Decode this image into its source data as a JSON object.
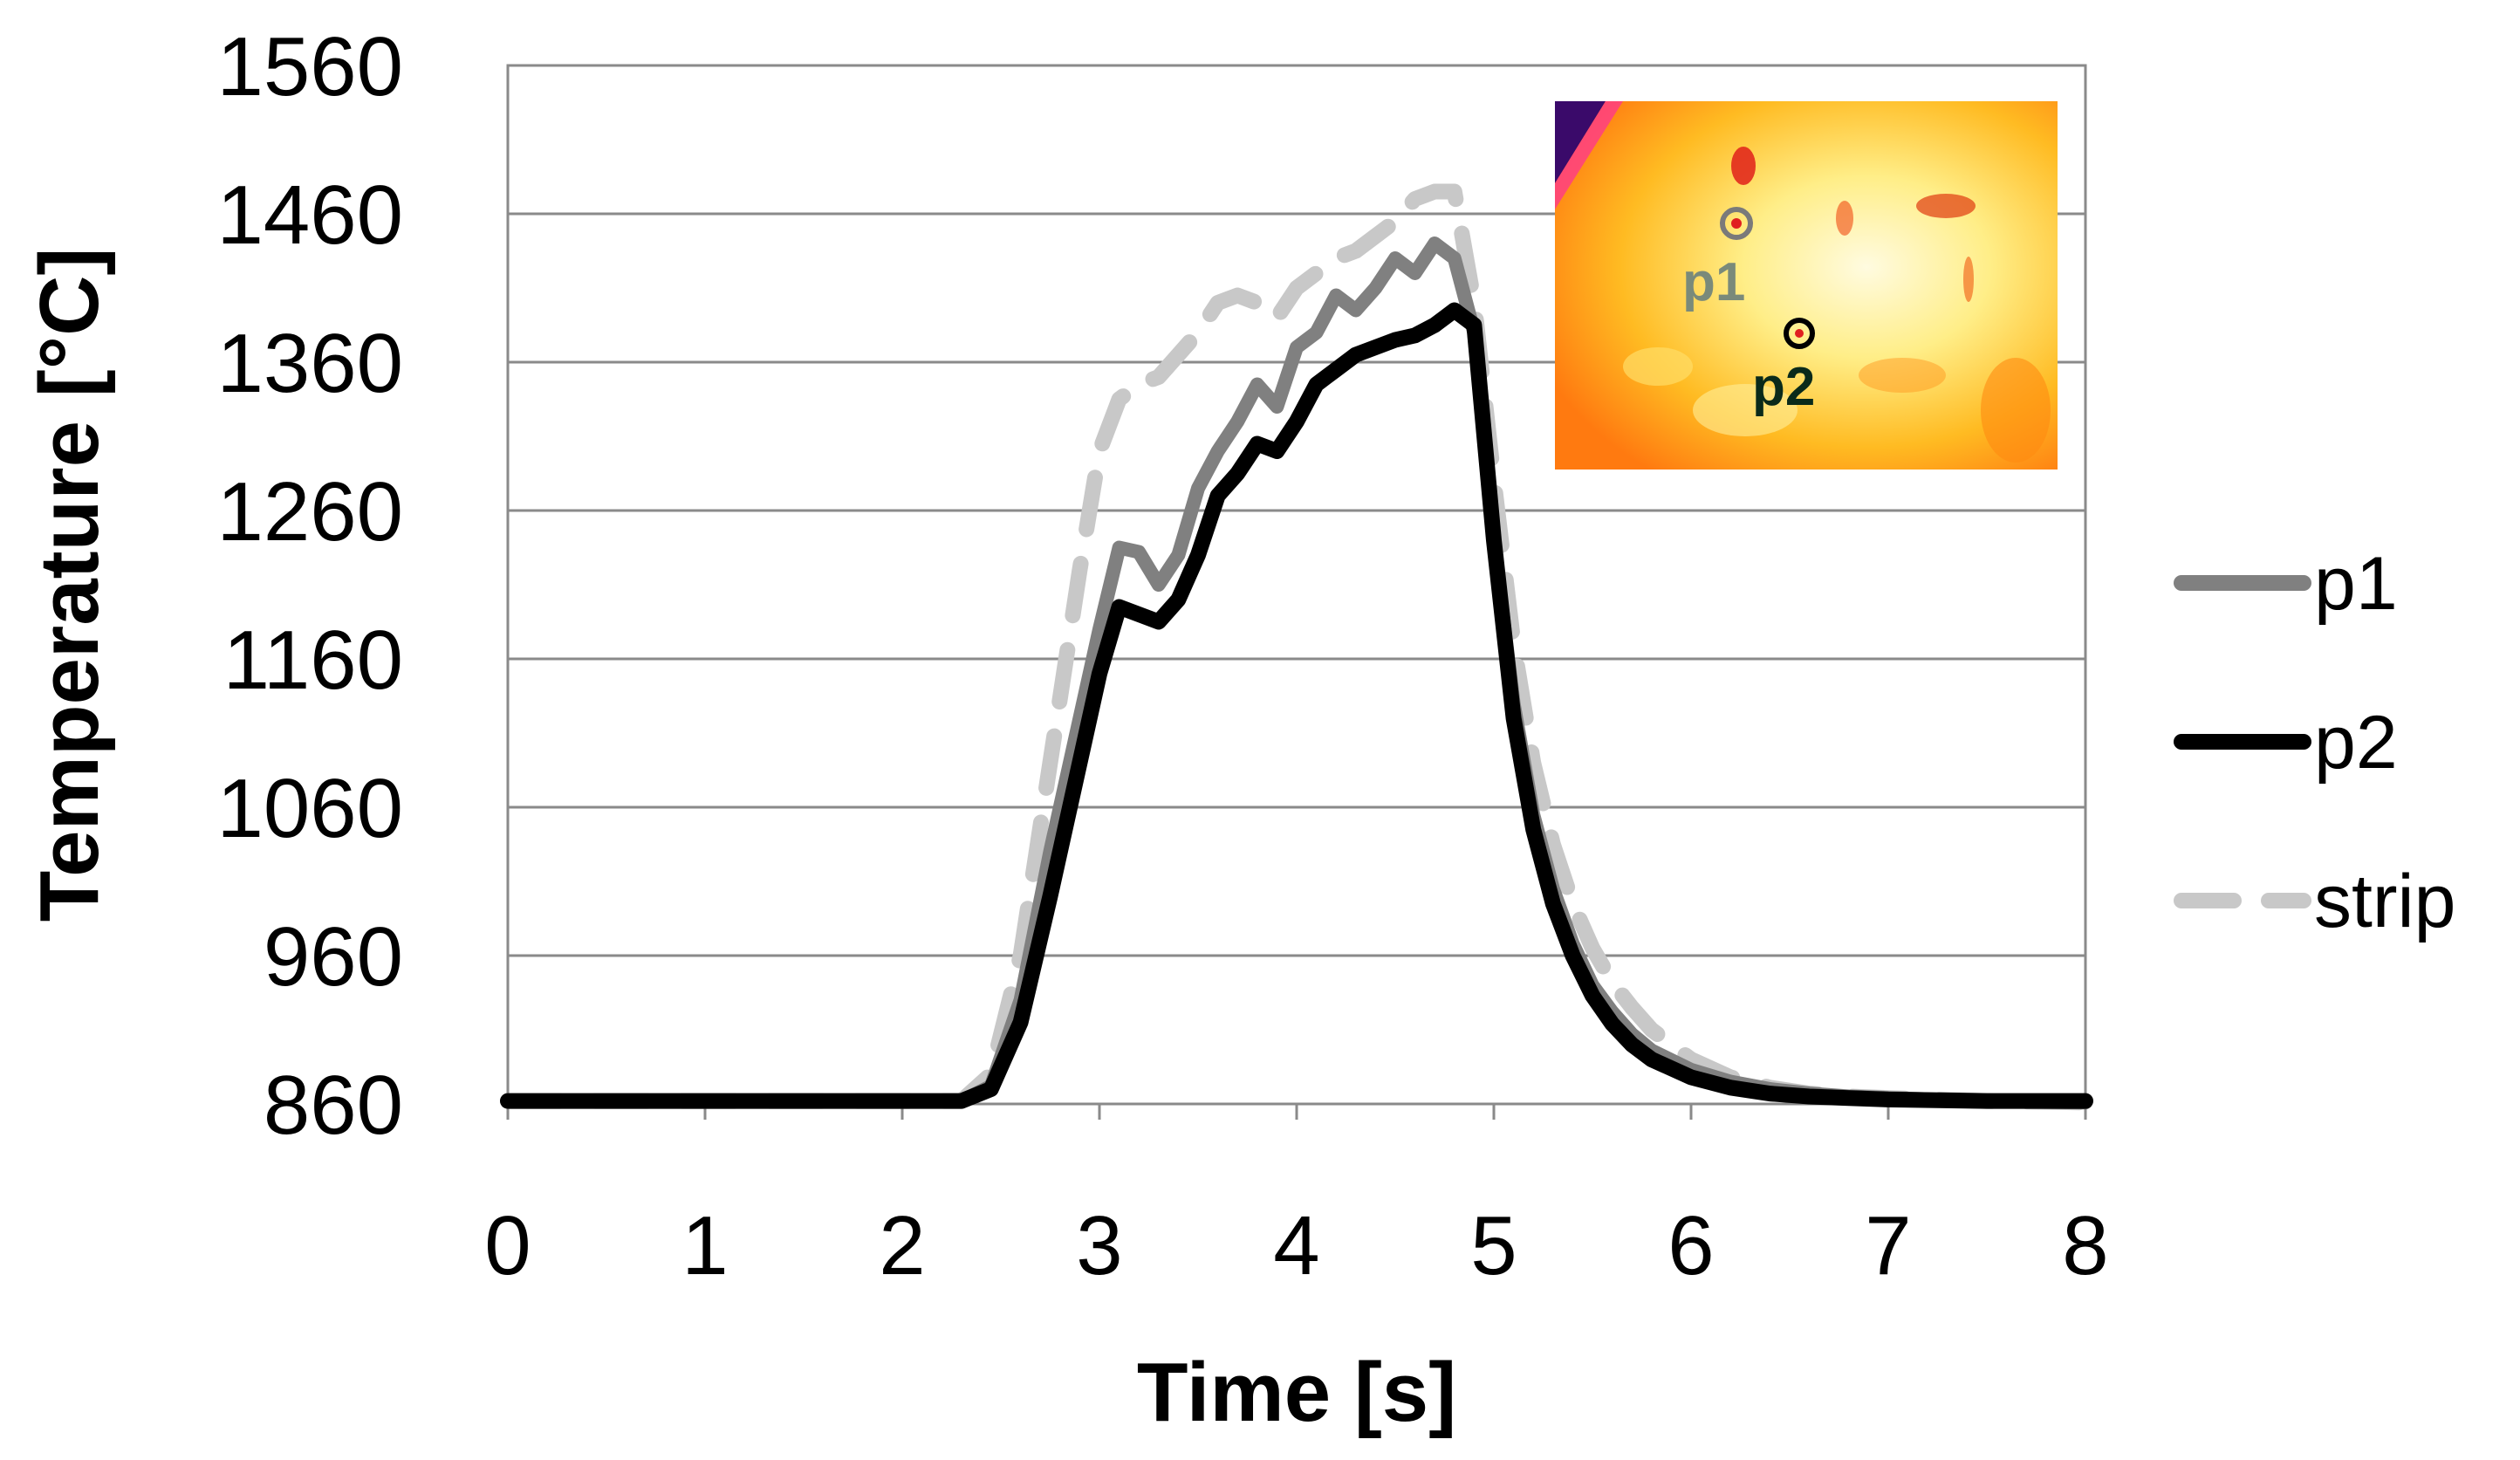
{
  "chart_data": {
    "type": "line",
    "title": "",
    "xlabel": "Time [s]",
    "ylabel": "Temperature [°C]",
    "xlim": [
      0,
      8
    ],
    "ylim": [
      860,
      1560
    ],
    "xticks": [
      "0",
      "1",
      "2",
      "3",
      "4",
      "5",
      "6",
      "7",
      "8"
    ],
    "yticks": [
      "860",
      "960",
      "1060",
      "1160",
      "1260",
      "1360",
      "1460",
      "1560"
    ],
    "grid": "horizontal",
    "legend_position": "right",
    "series": [
      {
        "name": "p1",
        "color": "#808080",
        "style": "solid",
        "x": [
          0,
          2.3,
          2.45,
          2.6,
          2.75,
          2.9,
          3.0,
          3.1,
          3.2,
          3.3,
          3.4,
          3.5,
          3.6,
          3.7,
          3.8,
          3.9,
          4.0,
          4.1,
          4.2,
          4.3,
          4.4,
          4.5,
          4.6,
          4.7,
          4.8,
          4.9,
          5.0,
          5.1,
          5.2,
          5.3,
          5.4,
          5.5,
          5.6,
          5.7,
          5.8,
          6.0,
          6.2,
          6.4,
          6.6,
          6.8,
          7.0,
          7.5,
          8.0
        ],
        "y": [
          862,
          862,
          872,
          930,
          1030,
          1120,
          1180,
          1235,
          1232,
          1210,
          1230,
          1275,
          1300,
          1320,
          1345,
          1330,
          1370,
          1380,
          1405,
          1395,
          1410,
          1430,
          1420,
          1440,
          1430,
          1380,
          1240,
          1130,
          1055,
          1005,
          968,
          940,
          922,
          907,
          896,
          883,
          875,
          870,
          867,
          865,
          864,
          862,
          861
        ]
      },
      {
        "name": "p2",
        "color": "#000000",
        "style": "solid",
        "x": [
          0,
          2.3,
          2.45,
          2.6,
          2.75,
          2.9,
          3.0,
          3.1,
          3.2,
          3.3,
          3.4,
          3.5,
          3.6,
          3.7,
          3.8,
          3.9,
          4.0,
          4.1,
          4.2,
          4.3,
          4.4,
          4.5,
          4.6,
          4.7,
          4.8,
          4.9,
          5.0,
          5.1,
          5.2,
          5.3,
          5.4,
          5.5,
          5.6,
          5.7,
          5.8,
          6.0,
          6.2,
          6.4,
          6.6,
          6.8,
          7.0,
          7.5,
          8.0
        ],
        "y": [
          862,
          862,
          870,
          915,
          1000,
          1090,
          1150,
          1195,
          1190,
          1185,
          1200,
          1230,
          1270,
          1285,
          1305,
          1300,
          1320,
          1345,
          1355,
          1365,
          1370,
          1375,
          1378,
          1385,
          1395,
          1385,
          1240,
          1120,
          1045,
          995,
          960,
          933,
          914,
          900,
          890,
          878,
          871,
          867,
          865,
          864,
          863,
          862,
          862
        ]
      },
      {
        "name": "strip",
        "color": "#c8c8c8",
        "style": "dashed",
        "x": [
          0,
          2.3,
          2.45,
          2.6,
          2.75,
          2.9,
          3.0,
          3.1,
          3.2,
          3.3,
          3.4,
          3.5,
          3.6,
          3.7,
          3.8,
          3.9,
          4.0,
          4.1,
          4.2,
          4.3,
          4.4,
          4.5,
          4.6,
          4.7,
          4.8,
          4.9,
          5.0,
          5.1,
          5.2,
          5.3,
          5.4,
          5.5,
          5.6,
          5.7,
          5.8,
          6.0,
          6.2,
          6.4,
          6.6,
          6.8,
          7.0,
          7.5,
          8.0
        ],
        "y": [
          862,
          862,
          880,
          960,
          1090,
          1220,
          1300,
          1335,
          1345,
          1350,
          1365,
          1380,
          1400,
          1405,
          1400,
          1390,
          1410,
          1420,
          1430,
          1435,
          1445,
          1455,
          1470,
          1475,
          1475,
          1400,
          1280,
          1170,
          1090,
          1035,
          995,
          965,
          942,
          925,
          910,
          890,
          878,
          871,
          867,
          865,
          864,
          862,
          861
        ]
      }
    ],
    "inset": {
      "description_labels": [
        "p1",
        "p2"
      ]
    }
  }
}
